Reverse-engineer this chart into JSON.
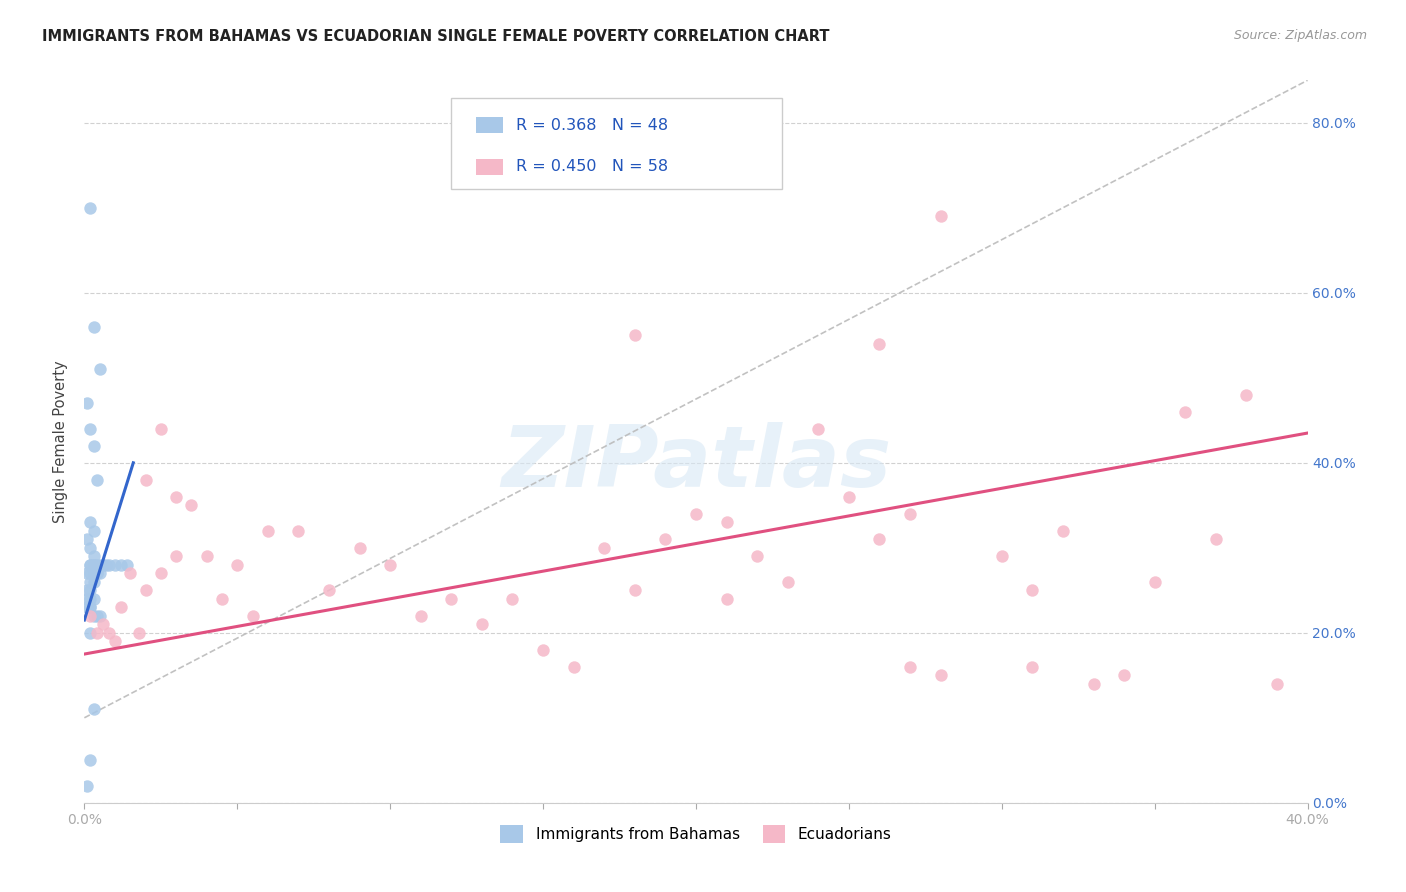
{
  "title": "IMMIGRANTS FROM BAHAMAS VS ECUADORIAN SINGLE FEMALE POVERTY CORRELATION CHART",
  "source": "Source: ZipAtlas.com",
  "ylabel": "Single Female Poverty",
  "legend_label_1": "Immigrants from Bahamas",
  "legend_label_2": "Ecuadorians",
  "r1": "0.368",
  "n1": "48",
  "r2": "0.450",
  "n2": "58",
  "color_blue": "#a8c8e8",
  "color_blue_line": "#3366cc",
  "color_pink": "#f5b8c8",
  "color_pink_line": "#e05080",
  "background": "#ffffff",
  "grid_color": "#cccccc",
  "xlim": [
    0.0,
    0.4
  ],
  "ylim": [
    0.0,
    0.85
  ],
  "yticks": [
    0.0,
    0.2,
    0.4,
    0.6,
    0.8
  ],
  "blue_scatter_x": [
    0.002,
    0.003,
    0.005,
    0.001,
    0.002,
    0.003,
    0.004,
    0.002,
    0.003,
    0.001,
    0.002,
    0.003,
    0.002,
    0.001,
    0.002,
    0.003,
    0.001,
    0.002,
    0.001,
    0.002,
    0.003,
    0.002,
    0.001,
    0.002,
    0.003,
    0.004,
    0.005,
    0.003,
    0.004,
    0.005,
    0.002,
    0.003,
    0.004,
    0.005,
    0.003,
    0.004,
    0.002,
    0.003,
    0.006,
    0.007,
    0.008,
    0.01,
    0.012,
    0.014,
    0.002,
    0.003,
    0.002,
    0.001
  ],
  "blue_scatter_y": [
    0.7,
    0.56,
    0.51,
    0.47,
    0.44,
    0.42,
    0.38,
    0.33,
    0.32,
    0.31,
    0.3,
    0.29,
    0.28,
    0.27,
    0.26,
    0.26,
    0.25,
    0.25,
    0.24,
    0.24,
    0.24,
    0.23,
    0.23,
    0.23,
    0.22,
    0.22,
    0.22,
    0.27,
    0.27,
    0.27,
    0.27,
    0.27,
    0.27,
    0.28,
    0.28,
    0.28,
    0.28,
    0.28,
    0.28,
    0.28,
    0.28,
    0.28,
    0.28,
    0.28,
    0.2,
    0.11,
    0.05,
    0.02
  ],
  "pink_scatter_x": [
    0.002,
    0.004,
    0.006,
    0.008,
    0.01,
    0.012,
    0.015,
    0.018,
    0.02,
    0.025,
    0.03,
    0.035,
    0.04,
    0.045,
    0.05,
    0.055,
    0.06,
    0.07,
    0.08,
    0.09,
    0.1,
    0.11,
    0.12,
    0.13,
    0.14,
    0.15,
    0.16,
    0.17,
    0.18,
    0.19,
    0.2,
    0.21,
    0.22,
    0.23,
    0.25,
    0.26,
    0.27,
    0.28,
    0.3,
    0.31,
    0.32,
    0.33,
    0.34,
    0.35,
    0.36,
    0.37,
    0.38,
    0.39,
    0.02,
    0.025,
    0.03,
    0.21,
    0.26,
    0.28,
    0.18,
    0.24,
    0.27,
    0.31
  ],
  "pink_scatter_y": [
    0.22,
    0.2,
    0.21,
    0.2,
    0.19,
    0.23,
    0.27,
    0.2,
    0.25,
    0.27,
    0.29,
    0.35,
    0.29,
    0.24,
    0.28,
    0.22,
    0.32,
    0.32,
    0.25,
    0.3,
    0.28,
    0.22,
    0.24,
    0.21,
    0.24,
    0.18,
    0.16,
    0.3,
    0.25,
    0.31,
    0.34,
    0.24,
    0.29,
    0.26,
    0.36,
    0.31,
    0.34,
    0.15,
    0.29,
    0.25,
    0.32,
    0.14,
    0.15,
    0.26,
    0.46,
    0.31,
    0.48,
    0.14,
    0.38,
    0.44,
    0.36,
    0.33,
    0.54,
    0.69,
    0.55,
    0.44,
    0.16,
    0.16
  ],
  "blue_line_x": [
    0.0,
    0.016
  ],
  "blue_line_y": [
    0.215,
    0.4
  ],
  "pink_line_x": [
    0.0,
    0.4
  ],
  "pink_line_y": [
    0.175,
    0.435
  ],
  "grey_line_x": [
    0.0,
    0.4
  ],
  "grey_line_y": [
    0.1,
    0.85
  ],
  "watermark": "ZIPatlas"
}
